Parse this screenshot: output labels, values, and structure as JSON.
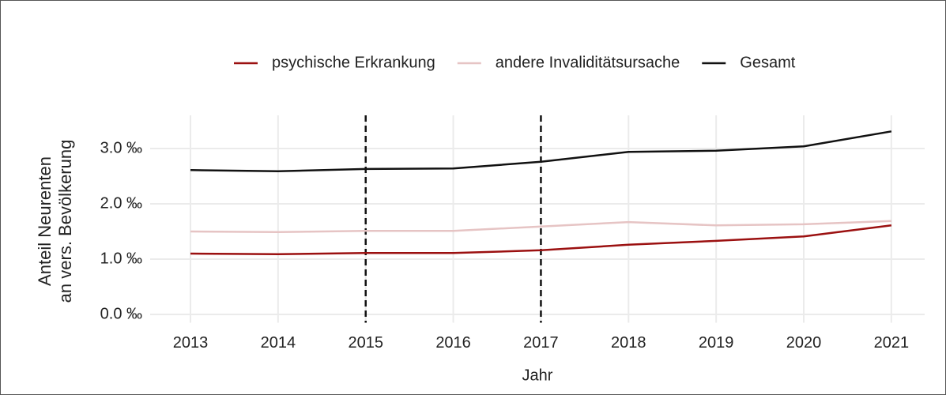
{
  "chart_data": {
    "type": "line",
    "x": [
      2013,
      2014,
      2015,
      2016,
      2017,
      2018,
      2019,
      2020,
      2021
    ],
    "series": [
      {
        "name": "psychische Erkrankung",
        "color": "#9b1010",
        "values": [
          1.1,
          1.09,
          1.11,
          1.11,
          1.16,
          1.26,
          1.33,
          1.41,
          1.61
        ]
      },
      {
        "name": "andere Invaliditätsursache",
        "color": "#e6c4c4",
        "values": [
          1.5,
          1.49,
          1.51,
          1.51,
          1.59,
          1.67,
          1.61,
          1.63,
          1.69
        ]
      },
      {
        "name": "Gesamt",
        "color": "#111111",
        "values": [
          2.61,
          2.59,
          2.63,
          2.64,
          2.76,
          2.94,
          2.96,
          3.04,
          3.31
        ]
      }
    ],
    "xlim": [
      2012.54,
      2021.38
    ],
    "xticks": [
      2013,
      2014,
      2015,
      2016,
      2017,
      2018,
      2019,
      2020,
      2021
    ],
    "ylim": [
      -0.15,
      3.6
    ],
    "yticks": [
      {
        "value": 0,
        "label": "0.0 ‰"
      },
      {
        "value": 1,
        "label": "1.0 ‰"
      },
      {
        "value": 2,
        "label": "2.0 ‰"
      },
      {
        "value": 3,
        "label": "3.0 ‰"
      }
    ],
    "vlines": [
      2015,
      2017
    ],
    "x_label": "Jahr",
    "y_label": [
      "Anteil Neurenten",
      "an vers. Bevölkerung"
    ],
    "grid": true,
    "legend": "top"
  }
}
